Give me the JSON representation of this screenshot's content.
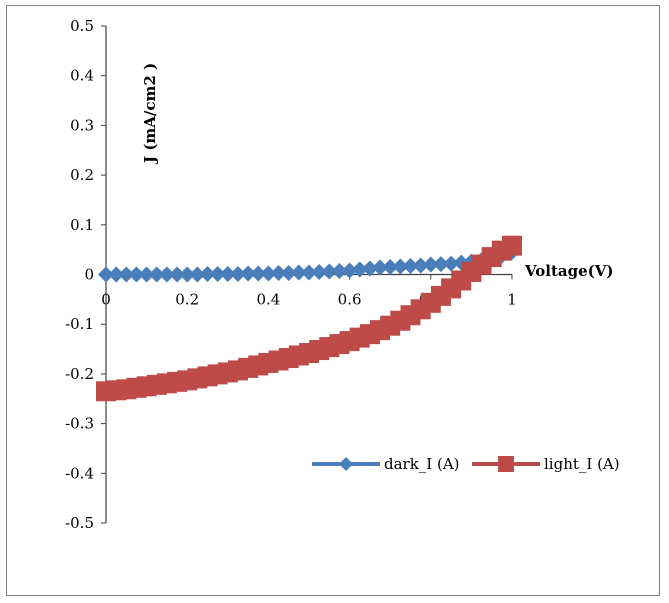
{
  "chart_data": {
    "type": "scatter",
    "xlabel": "Voltage(V)",
    "ylabel": "J (mA/cm2 )",
    "xlim": [
      0,
      1
    ],
    "ylim": [
      -0.5,
      0.5
    ],
    "x_ticks": [
      "0",
      "0.2",
      "0.4",
      "0.6",
      "0.8",
      "1"
    ],
    "y_ticks": [
      "0.5",
      "0.4",
      "0.3",
      "0.2",
      "0.1",
      "0",
      "-0.1",
      "-0.2",
      "-0.3",
      "-0.4",
      "-0.5"
    ],
    "grid": false,
    "legend_position": "bottom-right",
    "series": [
      {
        "name": "dark_I (A)",
        "color": "#4a7ebb",
        "marker": "diamond",
        "x": [
          0,
          0.025,
          0.05,
          0.075,
          0.1,
          0.125,
          0.15,
          0.175,
          0.2,
          0.225,
          0.25,
          0.275,
          0.3,
          0.325,
          0.35,
          0.375,
          0.4,
          0.425,
          0.45,
          0.475,
          0.5,
          0.525,
          0.55,
          0.575,
          0.6,
          0.625,
          0.65,
          0.675,
          0.7,
          0.725,
          0.75,
          0.775,
          0.8,
          0.825,
          0.85,
          0.875,
          0.9,
          0.925,
          0.95,
          0.975,
          1.0
        ],
        "y": [
          0,
          0,
          0,
          0,
          0,
          0,
          0,
          0,
          0,
          0,
          0.001,
          0.001,
          0.001,
          0.001,
          0.002,
          0.002,
          0.002,
          0.003,
          0.003,
          0.004,
          0.004,
          0.005,
          0.006,
          0.007,
          0.008,
          0.01,
          0.012,
          0.014,
          0.015,
          0.016,
          0.017,
          0.018,
          0.02,
          0.021,
          0.022,
          0.024,
          0.026,
          0.029,
          0.033,
          0.038,
          0.045
        ]
      },
      {
        "name": "light_I (A)",
        "color": "#be4b48",
        "marker": "square",
        "x": [
          0,
          0.025,
          0.05,
          0.075,
          0.1,
          0.125,
          0.15,
          0.175,
          0.2,
          0.225,
          0.25,
          0.275,
          0.3,
          0.325,
          0.35,
          0.375,
          0.4,
          0.425,
          0.45,
          0.475,
          0.5,
          0.525,
          0.55,
          0.575,
          0.6,
          0.625,
          0.65,
          0.675,
          0.7,
          0.725,
          0.75,
          0.775,
          0.8,
          0.825,
          0.85,
          0.875,
          0.9,
          0.925,
          0.95,
          0.975,
          1.0
        ],
        "y": [
          -0.235,
          -0.233,
          -0.231,
          -0.228,
          -0.225,
          -0.222,
          -0.219,
          -0.216,
          -0.213,
          -0.209,
          -0.205,
          -0.201,
          -0.197,
          -0.193,
          -0.188,
          -0.183,
          -0.178,
          -0.173,
          -0.168,
          -0.163,
          -0.158,
          -0.152,
          -0.146,
          -0.14,
          -0.134,
          -0.127,
          -0.12,
          -0.112,
          -0.103,
          -0.093,
          -0.082,
          -0.07,
          -0.057,
          -0.043,
          -0.028,
          -0.012,
          0.005,
          0.02,
          0.035,
          0.048,
          0.058
        ]
      }
    ]
  }
}
